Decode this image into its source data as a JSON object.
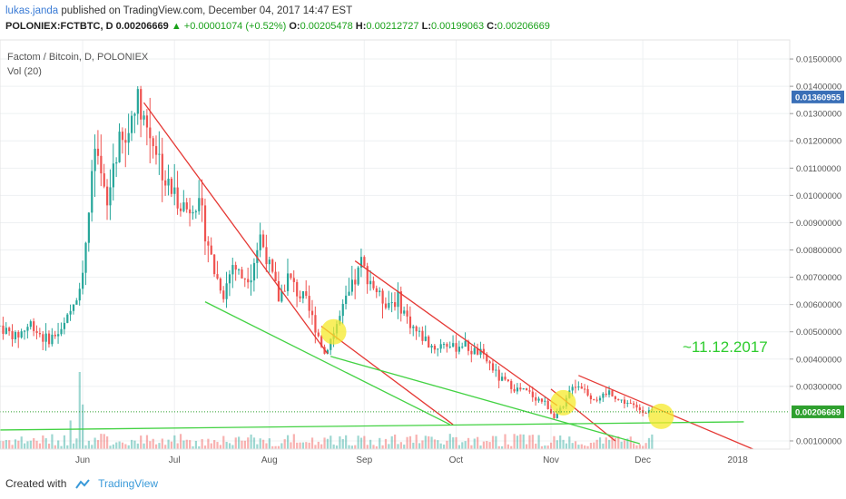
{
  "header": {
    "author": "lukas.janda",
    "published": "published on TradingView.com, December 04, 2017 14:47 EST",
    "symbol": "POLONIEX:FCTBTC, D",
    "last": "0.00206669",
    "arrow": "▲",
    "change": "+0.00001074 (+0.52%)",
    "o_label": "O:",
    "o_value": "0.00205478",
    "h_label": "H:",
    "h_value": "0.00212727",
    "l_label": "L:",
    "l_value": "0.00199063",
    "c_label": "C:",
    "c_value": "0.00206669"
  },
  "legend": {
    "title": "Factom / Bitcoin, D, POLONIEX",
    "vol": "Vol (20)"
  },
  "annotation": "~11.12.2017",
  "footer": {
    "created": "Created with",
    "brand": "TradingView"
  },
  "colors": {
    "up": "#26a69a",
    "down": "#ef5350",
    "red_line": "#e53935",
    "green_line": "#43d243",
    "circle": "#f5e92a",
    "annotation": "#2ecc2e",
    "badge_blue": "#3a6fb7",
    "badge_green": "#2fa02f"
  },
  "chart_data": {
    "type": "candlestick",
    "y_ticks": [
      "0.01500000",
      "0.01400000",
      "0.01300000",
      "0.01200000",
      "0.01100000",
      "0.01000000",
      "0.00900000",
      "0.00800000",
      "0.00700000",
      "0.00600000",
      "0.00500000",
      "0.00400000",
      "0.00300000",
      "0.00100000"
    ],
    "y_tick_values": [
      0.015,
      0.014,
      0.013,
      0.012,
      0.011,
      0.01,
      0.009,
      0.008,
      0.007,
      0.006,
      0.005,
      0.004,
      0.003,
      0.001
    ],
    "ylim": [
      0.0007,
      0.0157
    ],
    "x_ticks": [
      "Jun",
      "Jul",
      "Aug",
      "Sep",
      "Oct",
      "Nov",
      "Dec",
      "2018"
    ],
    "x_tick_dates": [
      "2017-06-01",
      "2017-07-01",
      "2017-08-01",
      "2017-09-01",
      "2017-10-01",
      "2017-11-01",
      "2017-12-01",
      "2018-01-01"
    ],
    "xlim": [
      "2017-05-05",
      "2018-01-18"
    ],
    "price_labels": [
      {
        "value": 0.01360955,
        "text": "0.01360955",
        "color": "blue"
      },
      {
        "value": 0.00206669,
        "text": "0.00206669",
        "color": "green"
      }
    ],
    "price_series": [
      [
        "2017-05-05",
        0.0052
      ],
      [
        "2017-05-10",
        0.0048
      ],
      [
        "2017-05-15",
        0.0053
      ],
      [
        "2017-05-20",
        0.0047
      ],
      [
        "2017-05-25",
        0.005
      ],
      [
        "2017-05-29",
        0.006
      ],
      [
        "2017-06-01",
        0.0072
      ],
      [
        "2017-06-03",
        0.0095
      ],
      [
        "2017-06-05",
        0.0115
      ],
      [
        "2017-06-07",
        0.0105
      ],
      [
        "2017-06-09",
        0.0095
      ],
      [
        "2017-06-11",
        0.0112
      ],
      [
        "2017-06-13",
        0.012
      ],
      [
        "2017-06-15",
        0.0118
      ],
      [
        "2017-06-18",
        0.0135
      ],
      [
        "2017-06-20",
        0.0133
      ],
      [
        "2017-06-22",
        0.0125
      ],
      [
        "2017-06-25",
        0.0118
      ],
      [
        "2017-06-28",
        0.0105
      ],
      [
        "2017-07-01",
        0.01
      ],
      [
        "2017-07-05",
        0.0095
      ],
      [
        "2017-07-08",
        0.0098
      ],
      [
        "2017-07-11",
        0.0088
      ],
      [
        "2017-07-14",
        0.0072
      ],
      [
        "2017-07-17",
        0.0064
      ],
      [
        "2017-07-20",
        0.0075
      ],
      [
        "2017-07-23",
        0.007
      ],
      [
        "2017-07-26",
        0.0072
      ],
      [
        "2017-07-29",
        0.0085
      ],
      [
        "2017-08-01",
        0.0074
      ],
      [
        "2017-08-04",
        0.0062
      ],
      [
        "2017-08-07",
        0.007
      ],
      [
        "2017-08-10",
        0.0065
      ],
      [
        "2017-08-13",
        0.006
      ],
      [
        "2017-08-16",
        0.0052
      ],
      [
        "2017-08-19",
        0.0042
      ],
      [
        "2017-08-22",
        0.005
      ],
      [
        "2017-08-25",
        0.0058
      ],
      [
        "2017-08-28",
        0.0066
      ],
      [
        "2017-08-31",
        0.0075
      ],
      [
        "2017-09-03",
        0.0069
      ],
      [
        "2017-09-06",
        0.0063
      ],
      [
        "2017-09-09",
        0.0061
      ],
      [
        "2017-09-12",
        0.0062
      ],
      [
        "2017-09-15",
        0.0055
      ],
      [
        "2017-09-18",
        0.005
      ],
      [
        "2017-09-21",
        0.0047
      ],
      [
        "2017-09-24",
        0.0044
      ],
      [
        "2017-09-27",
        0.0046
      ],
      [
        "2017-09-30",
        0.0044
      ],
      [
        "2017-10-03",
        0.0046
      ],
      [
        "2017-10-06",
        0.0043
      ],
      [
        "2017-10-09",
        0.0042
      ],
      [
        "2017-10-12",
        0.0038
      ],
      [
        "2017-10-15",
        0.0033
      ],
      [
        "2017-10-18",
        0.0031
      ],
      [
        "2017-10-21",
        0.0029
      ],
      [
        "2017-10-24",
        0.0028
      ],
      [
        "2017-10-27",
        0.0026
      ],
      [
        "2017-10-30",
        0.0024
      ],
      [
        "2017-11-02",
        0.0019
      ],
      [
        "2017-11-05",
        0.0022
      ],
      [
        "2017-11-08",
        0.0031
      ],
      [
        "2017-11-11",
        0.003
      ],
      [
        "2017-11-14",
        0.0026
      ],
      [
        "2017-11-17",
        0.0025
      ],
      [
        "2017-11-20",
        0.0028
      ],
      [
        "2017-11-23",
        0.0025
      ],
      [
        "2017-11-26",
        0.0024
      ],
      [
        "2017-11-29",
        0.0022
      ],
      [
        "2017-12-02",
        0.0021
      ],
      [
        "2017-12-04",
        0.00207
      ]
    ],
    "trendlines": [
      {
        "color": "red",
        "points": [
          [
            "2017-06-21",
            0.0134
          ],
          [
            "2017-08-20",
            0.0042
          ]
        ]
      },
      {
        "color": "red",
        "points": [
          [
            "2017-08-18",
            0.0052
          ],
          [
            "2017-09-30",
            0.0016
          ]
        ]
      },
      {
        "color": "red",
        "points": [
          [
            "2017-08-29",
            0.0076
          ],
          [
            "2017-11-03",
            0.0023
          ]
        ]
      },
      {
        "color": "red",
        "points": [
          [
            "2017-11-01",
            0.0029
          ],
          [
            "2017-11-22",
            0.001
          ]
        ]
      },
      {
        "color": "red",
        "points": [
          [
            "2017-11-10",
            0.0034
          ],
          [
            "2018-01-06",
            0.0007
          ]
        ]
      },
      {
        "color": "green",
        "points": [
          [
            "2017-07-11",
            0.0061
          ],
          [
            "2017-09-29",
            0.0016
          ]
        ]
      },
      {
        "color": "green",
        "points": [
          [
            "2017-08-21",
            0.0041
          ],
          [
            "2017-11-30",
            0.0009
          ]
        ]
      },
      {
        "color": "green",
        "points": [
          [
            "2017-05-05",
            0.0014
          ],
          [
            "2018-01-03",
            0.0017
          ]
        ]
      }
    ],
    "highlights": [
      {
        "date": "2017-08-22",
        "value": 0.005
      },
      {
        "date": "2017-11-05",
        "value": 0.0024
      },
      {
        "date": "2017-12-07",
        "value": 0.0019
      }
    ],
    "volume_highlight": {
      "date": "2017-05-31"
    }
  }
}
